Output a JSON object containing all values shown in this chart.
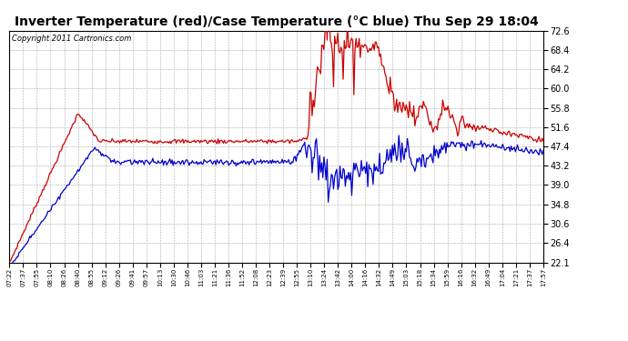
{
  "title": "Inverter Temperature (red)/Case Temperature (°C blue) Thu Sep 29 18:04",
  "copyright": "Copyright 2011 Cartronics.com",
  "yticks": [
    22.1,
    26.4,
    30.6,
    34.8,
    39.0,
    43.2,
    47.4,
    51.6,
    55.8,
    60.0,
    64.2,
    68.4,
    72.6
  ],
  "ymin": 22.1,
  "ymax": 72.6,
  "xtick_labels": [
    "07:22",
    "07:37",
    "07:55",
    "08:10",
    "08:26",
    "08:40",
    "08:55",
    "09:12",
    "09:26",
    "09:41",
    "09:57",
    "10:13",
    "10:30",
    "10:46",
    "11:03",
    "11:21",
    "11:36",
    "11:52",
    "12:08",
    "12:23",
    "12:39",
    "12:55",
    "13:10",
    "13:24",
    "13:42",
    "14:00",
    "14:16",
    "14:32",
    "14:49",
    "15:03",
    "15:18",
    "15:34",
    "15:59",
    "16:16",
    "16:32",
    "16:49",
    "17:04",
    "17:21",
    "17:37",
    "17:57"
  ],
  "bg_color": "#ffffff",
  "grid_color": "#aaaaaa",
  "red_color": "#cc0000",
  "blue_color": "#0000cc",
  "title_font_size": 10,
  "copyright_font_size": 6
}
